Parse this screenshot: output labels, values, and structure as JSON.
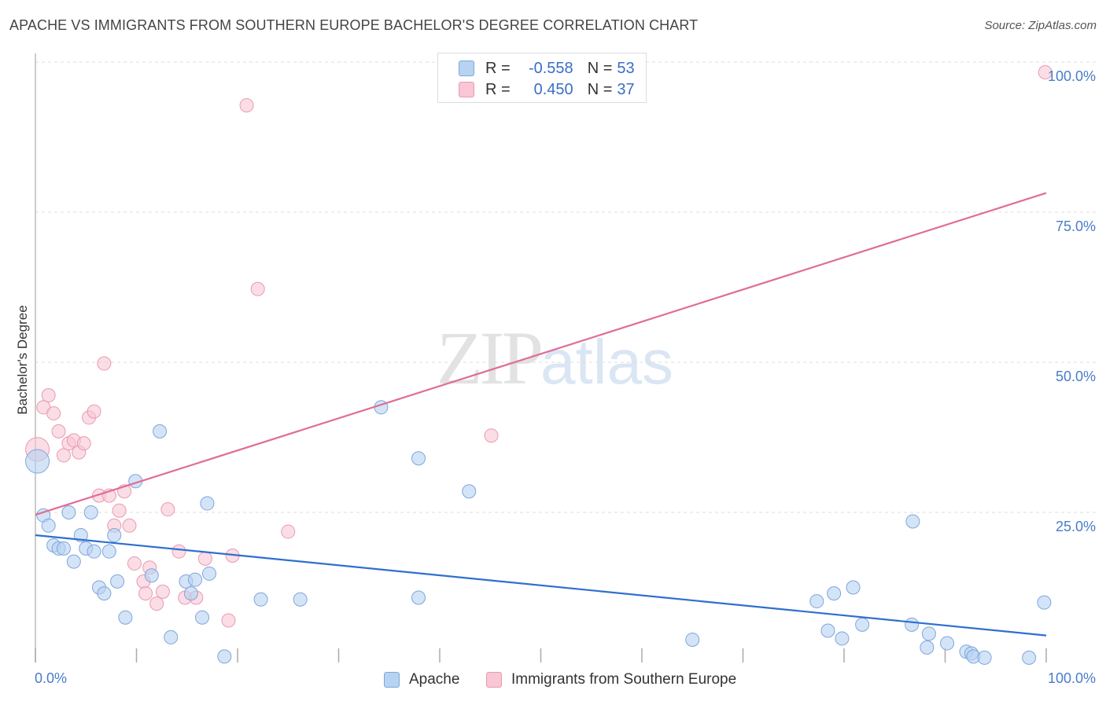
{
  "header": {
    "title": "APACHE VS IMMIGRANTS FROM SOUTHERN EUROPE BACHELOR'S DEGREE CORRELATION CHART",
    "source": "Source: ZipAtlas.com"
  },
  "watermark": {
    "zip": "ZIP",
    "atlas": "atlas"
  },
  "legend": {
    "apache": {
      "r_label": "R =",
      "r_value": "-0.558",
      "n_label": "N =",
      "n_value": "53"
    },
    "immigrants": {
      "r_label": "R =",
      "r_value": "0.450",
      "n_label": "N =",
      "n_value": "37"
    }
  },
  "bottom_legend": {
    "apache": "Apache",
    "immigrants": "Immigrants from Southern Europe"
  },
  "colors": {
    "apache_fill": "#b8d2f2",
    "apache_stroke": "#7ea6dd",
    "apache_line": "#2f6fcf",
    "immigrants_fill": "#f8c6d4",
    "immigrants_stroke": "#e99ab1",
    "immigrants_line": "#e06d95",
    "grid": "#dddddd",
    "axis_label": "#4a7cc9"
  },
  "chart_data": {
    "type": "scatter",
    "title": "APACHE VS IMMIGRANTS FROM SOUTHERN EUROPE BACHELOR'S DEGREE CORRELATION CHART",
    "xlabel": "",
    "ylabel": "Bachelor's Degree",
    "xlim": [
      0,
      100
    ],
    "ylim": [
      0,
      100
    ],
    "x_tick_labels": [
      "0.0%",
      "100.0%"
    ],
    "y_ticks": [
      25,
      50,
      75,
      100
    ],
    "y_tick_labels": [
      "25.0%",
      "50.0%",
      "75.0%",
      "100.0%"
    ],
    "grid": true,
    "series": [
      {
        "name": "Apache",
        "r": -0.558,
        "n": 53,
        "trend": {
          "x": [
            0,
            100
          ],
          "y": [
            21.2,
            4.5
          ]
        },
        "points": [
          {
            "x": 0.2,
            "y": 33.5,
            "big": true
          },
          {
            "x": 0.8,
            "y": 24.5
          },
          {
            "x": 1.3,
            "y": 22.8
          },
          {
            "x": 1.8,
            "y": 19.5
          },
          {
            "x": 2.3,
            "y": 19.0
          },
          {
            "x": 2.8,
            "y": 19.0
          },
          {
            "x": 3.3,
            "y": 25.0
          },
          {
            "x": 3.8,
            "y": 16.8
          },
          {
            "x": 4.5,
            "y": 21.2
          },
          {
            "x": 5.0,
            "y": 19.0
          },
          {
            "x": 5.5,
            "y": 25.0
          },
          {
            "x": 5.8,
            "y": 18.5
          },
          {
            "x": 6.3,
            "y": 12.5
          },
          {
            "x": 6.8,
            "y": 11.5
          },
          {
            "x": 7.3,
            "y": 18.5
          },
          {
            "x": 7.8,
            "y": 21.2
          },
          {
            "x": 8.1,
            "y": 13.5
          },
          {
            "x": 8.9,
            "y": 7.5
          },
          {
            "x": 9.9,
            "y": 30.2
          },
          {
            "x": 11.5,
            "y": 14.5
          },
          {
            "x": 12.3,
            "y": 38.5
          },
          {
            "x": 13.4,
            "y": 4.2
          },
          {
            "x": 14.9,
            "y": 13.5
          },
          {
            "x": 15.4,
            "y": 11.5
          },
          {
            "x": 15.8,
            "y": 13.8
          },
          {
            "x": 16.5,
            "y": 7.5
          },
          {
            "x": 17.0,
            "y": 26.5
          },
          {
            "x": 17.2,
            "y": 14.8
          },
          {
            "x": 18.7,
            "y": 1.0
          },
          {
            "x": 22.3,
            "y": 10.5
          },
          {
            "x": 26.2,
            "y": 10.5
          },
          {
            "x": 34.2,
            "y": 42.5
          },
          {
            "x": 37.9,
            "y": 34.0
          },
          {
            "x": 37.9,
            "y": 10.8
          },
          {
            "x": 42.9,
            "y": 28.5
          },
          {
            "x": 65.0,
            "y": 3.8
          },
          {
            "x": 77.3,
            "y": 10.2
          },
          {
            "x": 78.4,
            "y": 5.3
          },
          {
            "x": 79.0,
            "y": 11.5
          },
          {
            "x": 79.8,
            "y": 4.0
          },
          {
            "x": 80.9,
            "y": 12.5
          },
          {
            "x": 81.8,
            "y": 6.3
          },
          {
            "x": 86.7,
            "y": 6.3
          },
          {
            "x": 86.8,
            "y": 23.5
          },
          {
            "x": 88.2,
            "y": 2.5
          },
          {
            "x": 88.4,
            "y": 4.8
          },
          {
            "x": 90.2,
            "y": 3.2
          },
          {
            "x": 92.1,
            "y": 1.8
          },
          {
            "x": 92.6,
            "y": 1.5
          },
          {
            "x": 92.8,
            "y": 1.0
          },
          {
            "x": 93.9,
            "y": 0.8
          },
          {
            "x": 98.3,
            "y": 0.8
          },
          {
            "x": 99.8,
            "y": 10.0
          }
        ]
      },
      {
        "name": "Immigrants from Southern Europe",
        "r": 0.45,
        "n": 37,
        "trend": {
          "x": [
            0,
            100
          ],
          "y": [
            24.6,
            78.2
          ]
        },
        "points": [
          {
            "x": 0.2,
            "y": 35.5,
            "big": true
          },
          {
            "x": 0.8,
            "y": 42.5
          },
          {
            "x": 1.3,
            "y": 44.5
          },
          {
            "x": 1.8,
            "y": 41.5
          },
          {
            "x": 2.3,
            "y": 38.5
          },
          {
            "x": 2.8,
            "y": 34.5
          },
          {
            "x": 3.3,
            "y": 36.5
          },
          {
            "x": 3.8,
            "y": 37.0
          },
          {
            "x": 4.3,
            "y": 35.0
          },
          {
            "x": 4.8,
            "y": 36.5
          },
          {
            "x": 5.3,
            "y": 40.8
          },
          {
            "x": 5.8,
            "y": 41.8
          },
          {
            "x": 6.3,
            "y": 27.8
          },
          {
            "x": 6.8,
            "y": 49.8
          },
          {
            "x": 7.3,
            "y": 27.8
          },
          {
            "x": 7.8,
            "y": 22.8
          },
          {
            "x": 8.3,
            "y": 25.3
          },
          {
            "x": 8.8,
            "y": 28.5
          },
          {
            "x": 9.3,
            "y": 22.8
          },
          {
            "x": 9.8,
            "y": 16.5
          },
          {
            "x": 10.7,
            "y": 13.5
          },
          {
            "x": 10.9,
            "y": 11.5
          },
          {
            "x": 11.3,
            "y": 15.8
          },
          {
            "x": 12.0,
            "y": 9.8
          },
          {
            "x": 12.6,
            "y": 11.8
          },
          {
            "x": 13.1,
            "y": 25.5
          },
          {
            "x": 14.2,
            "y": 18.5
          },
          {
            "x": 14.8,
            "y": 10.8
          },
          {
            "x": 15.9,
            "y": 10.8
          },
          {
            "x": 16.8,
            "y": 17.3
          },
          {
            "x": 19.1,
            "y": 7.0
          },
          {
            "x": 19.5,
            "y": 17.8
          },
          {
            "x": 20.9,
            "y": 92.8
          },
          {
            "x": 22.0,
            "y": 62.2
          },
          {
            "x": 25.0,
            "y": 21.8
          },
          {
            "x": 45.1,
            "y": 37.8
          },
          {
            "x": 99.9,
            "y": 98.3
          }
        ]
      }
    ]
  }
}
